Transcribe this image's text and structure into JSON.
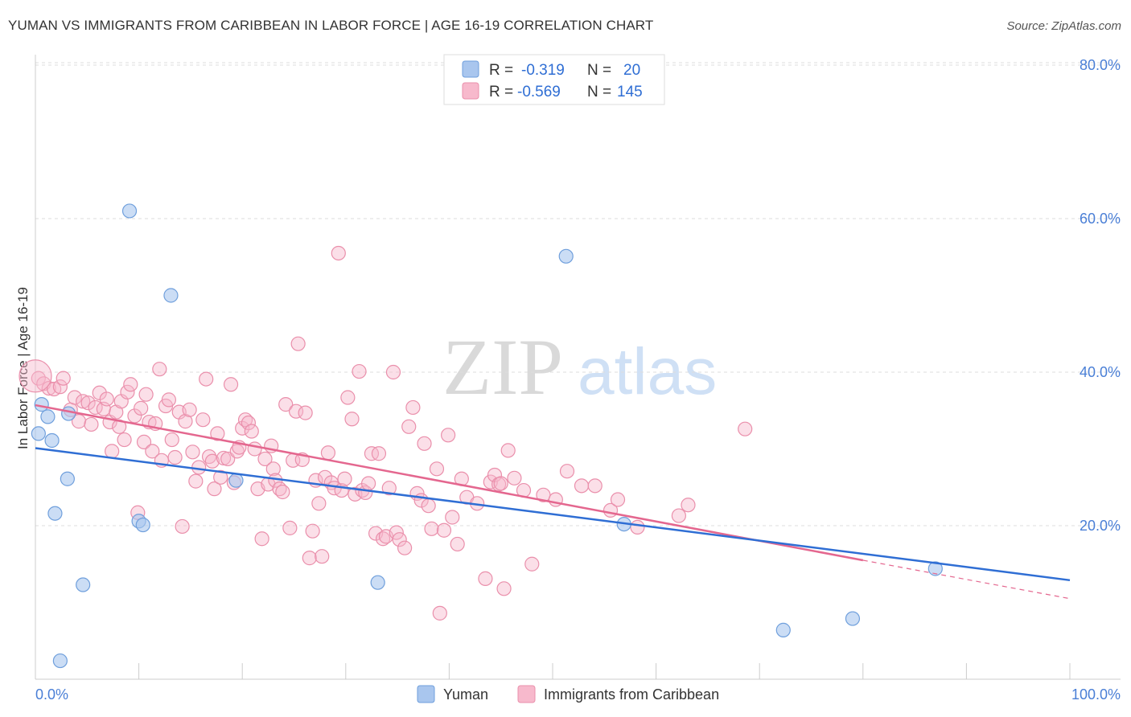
{
  "header": {
    "title": "YUMAN VS IMMIGRANTS FROM CARIBBEAN IN LABOR FORCE | AGE 16-19 CORRELATION CHART",
    "source": "Source: ZipAtlas.com"
  },
  "watermark": {
    "zip": "ZIP",
    "atlas": "atlas"
  },
  "colors": {
    "yuman_fill": "#a9c6ee",
    "yuman_stroke": "#6f9fdc",
    "yuman_line": "#2f6ed4",
    "carib_fill": "#f7b9cc",
    "carib_stroke": "#ea8fab",
    "carib_line": "#e4678f",
    "tick_text": "#4a7fd6"
  },
  "legend": {
    "rows": [
      {
        "r_label": "R =",
        "r_value": "-0.319",
        "n_label": "N =",
        "n_value": "20"
      },
      {
        "r_label": "R =",
        "r_value": "-0.569",
        "n_label": "N =",
        "n_value": "145"
      }
    ]
  },
  "chart_data": {
    "type": "scatter",
    "title": "YUMAN VS IMMIGRANTS FROM CARIBBEAN IN LABOR FORCE | AGE 16-19 CORRELATION CHART",
    "xlabel": "",
    "ylabel": "In Labor Force | Age 16-19",
    "xlim": [
      0,
      100
    ],
    "ylim": [
      0,
      82
    ],
    "x_tick_labels": [
      "0.0%",
      "100.0%"
    ],
    "y_ticks": [
      20,
      40,
      60,
      80
    ],
    "y_tick_labels": [
      "20.0%",
      "40.0%",
      "60.0%",
      "80.0%"
    ],
    "grid": "horizontal dashed",
    "legend_position": "top-center",
    "series": [
      {
        "name": "Yuman",
        "r": -0.319,
        "n": 20,
        "trend": {
          "x0": 0,
          "y0": 30.1,
          "x1": 100,
          "y1": 12.9
        },
        "points": [
          [
            0.3,
            32.0
          ],
          [
            0.6,
            35.8
          ],
          [
            1.2,
            34.2
          ],
          [
            1.6,
            31.1
          ],
          [
            1.9,
            21.6
          ],
          [
            2.4,
            2.4
          ],
          [
            3.1,
            26.1
          ],
          [
            4.6,
            12.3
          ],
          [
            9.1,
            61.0
          ],
          [
            10.0,
            20.6
          ],
          [
            10.4,
            20.1
          ],
          [
            13.1,
            50.0
          ],
          [
            19.4,
            25.9
          ],
          [
            33.1,
            12.6
          ],
          [
            51.3,
            55.1
          ],
          [
            56.9,
            20.2
          ],
          [
            72.3,
            6.4
          ],
          [
            79.0,
            7.9
          ],
          [
            87.0,
            14.4
          ],
          [
            3.2,
            34.6
          ]
        ]
      },
      {
        "name": "Immigrants from Caribbean",
        "r": -0.569,
        "n": 145,
        "trend": {
          "x0": 0,
          "y0": 35.7,
          "x1": 80,
          "y1": 15.5,
          "dash_x1": 100,
          "dash_y1": 10.5
        },
        "points": [
          [
            0.3,
            39.2
          ],
          [
            0.8,
            38.5
          ],
          [
            1.3,
            37.9
          ],
          [
            1.8,
            37.8
          ],
          [
            2.4,
            38.1
          ],
          [
            2.7,
            39.2
          ],
          [
            3.4,
            35.1
          ],
          [
            3.8,
            36.7
          ],
          [
            4.2,
            33.6
          ],
          [
            4.6,
            36.2
          ],
          [
            5.1,
            36.0
          ],
          [
            5.4,
            33.2
          ],
          [
            5.8,
            35.4
          ],
          [
            6.2,
            37.3
          ],
          [
            6.6,
            35.2
          ],
          [
            6.9,
            36.5
          ],
          [
            7.2,
            33.5
          ],
          [
            7.4,
            29.7
          ],
          [
            7.8,
            34.8
          ],
          [
            8.1,
            32.9
          ],
          [
            8.3,
            36.2
          ],
          [
            8.6,
            31.2
          ],
          [
            8.9,
            37.4
          ],
          [
            9.2,
            38.4
          ],
          [
            9.6,
            34.3
          ],
          [
            9.9,
            21.7
          ],
          [
            10.2,
            35.3
          ],
          [
            10.5,
            30.9
          ],
          [
            10.7,
            37.1
          ],
          [
            11.0,
            33.5
          ],
          [
            11.3,
            29.7
          ],
          [
            11.6,
            33.3
          ],
          [
            12.0,
            40.4
          ],
          [
            12.2,
            28.5
          ],
          [
            12.6,
            35.6
          ],
          [
            12.9,
            36.4
          ],
          [
            13.2,
            31.2
          ],
          [
            13.5,
            28.9
          ],
          [
            13.9,
            34.8
          ],
          [
            14.2,
            19.9
          ],
          [
            14.5,
            33.6
          ],
          [
            14.9,
            35.1
          ],
          [
            15.2,
            29.6
          ],
          [
            15.5,
            25.8
          ],
          [
            15.8,
            27.6
          ],
          [
            16.2,
            33.8
          ],
          [
            16.5,
            39.1
          ],
          [
            16.8,
            29.0
          ],
          [
            17.1,
            28.4
          ],
          [
            17.3,
            24.8
          ],
          [
            17.6,
            32.0
          ],
          [
            17.9,
            26.3
          ],
          [
            18.2,
            28.8
          ],
          [
            18.6,
            28.7
          ],
          [
            18.9,
            38.4
          ],
          [
            19.2,
            25.6
          ],
          [
            19.5,
            29.7
          ],
          [
            19.7,
            30.2
          ],
          [
            20.0,
            32.7
          ],
          [
            20.3,
            33.8
          ],
          [
            20.6,
            33.4
          ],
          [
            20.9,
            32.3
          ],
          [
            21.2,
            30.0
          ],
          [
            21.5,
            24.8
          ],
          [
            21.9,
            18.3
          ],
          [
            22.2,
            28.7
          ],
          [
            22.5,
            25.4
          ],
          [
            22.8,
            30.4
          ],
          [
            23.0,
            27.4
          ],
          [
            23.2,
            25.9
          ],
          [
            23.6,
            24.8
          ],
          [
            23.9,
            24.4
          ],
          [
            24.2,
            35.8
          ],
          [
            24.6,
            19.7
          ],
          [
            24.9,
            28.5
          ],
          [
            25.2,
            34.9
          ],
          [
            25.4,
            43.7
          ],
          [
            25.8,
            28.6
          ],
          [
            26.1,
            34.7
          ],
          [
            26.5,
            15.8
          ],
          [
            26.8,
            19.3
          ],
          [
            27.1,
            25.9
          ],
          [
            27.4,
            22.9
          ],
          [
            27.7,
            16.0
          ],
          [
            28.0,
            26.3
          ],
          [
            28.3,
            29.5
          ],
          [
            28.6,
            25.6
          ],
          [
            28.9,
            24.9
          ],
          [
            29.3,
            55.5
          ],
          [
            29.6,
            24.6
          ],
          [
            29.9,
            26.1
          ],
          [
            30.2,
            36.7
          ],
          [
            30.6,
            33.9
          ],
          [
            30.9,
            24.1
          ],
          [
            31.3,
            40.1
          ],
          [
            31.6,
            24.6
          ],
          [
            31.9,
            24.3
          ],
          [
            32.2,
            25.5
          ],
          [
            32.5,
            29.4
          ],
          [
            32.9,
            19.0
          ],
          [
            33.2,
            29.4
          ],
          [
            33.6,
            18.3
          ],
          [
            33.9,
            18.6
          ],
          [
            34.2,
            24.9
          ],
          [
            34.6,
            40.0
          ],
          [
            34.9,
            19.1
          ],
          [
            35.2,
            18.2
          ],
          [
            35.7,
            17.1
          ],
          [
            36.1,
            32.9
          ],
          [
            36.5,
            35.4
          ],
          [
            36.9,
            24.2
          ],
          [
            37.3,
            23.3
          ],
          [
            37.6,
            30.7
          ],
          [
            38.0,
            22.6
          ],
          [
            38.3,
            19.6
          ],
          [
            38.8,
            27.4
          ],
          [
            39.1,
            8.6
          ],
          [
            39.5,
            19.4
          ],
          [
            39.9,
            31.8
          ],
          [
            40.3,
            21.1
          ],
          [
            40.8,
            17.6
          ],
          [
            41.2,
            26.1
          ],
          [
            41.7,
            23.7
          ],
          [
            42.7,
            22.9
          ],
          [
            43.5,
            13.1
          ],
          [
            44.0,
            25.7
          ],
          [
            44.4,
            26.6
          ],
          [
            44.8,
            25.4
          ],
          [
            45.0,
            25.5
          ],
          [
            45.3,
            11.8
          ],
          [
            45.7,
            29.8
          ],
          [
            46.3,
            26.2
          ],
          [
            47.2,
            24.6
          ],
          [
            48.0,
            15.0
          ],
          [
            49.1,
            24.0
          ],
          [
            50.3,
            23.4
          ],
          [
            51.4,
            27.1
          ],
          [
            52.8,
            25.2
          ],
          [
            54.1,
            25.2
          ],
          [
            55.6,
            22.0
          ],
          [
            56.3,
            23.4
          ],
          [
            58.2,
            19.8
          ],
          [
            62.2,
            21.3
          ],
          [
            63.1,
            22.7
          ],
          [
            68.6,
            32.6
          ]
        ]
      }
    ]
  },
  "bottom_legend": [
    {
      "label": "Yuman"
    },
    {
      "label": "Immigrants from Caribbean"
    }
  ]
}
